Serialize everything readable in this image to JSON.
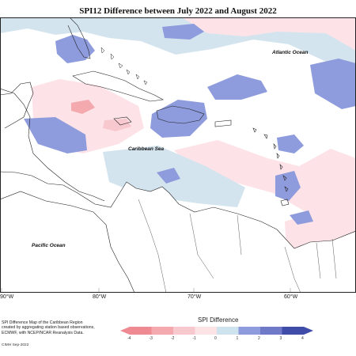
{
  "title": "SPI12 Difference between July 2022 and August 2022",
  "labels": {
    "atlantic": "Atlantic Ocean",
    "caribbean": "Caribbean Sea",
    "pacific": "Pacific Ocean"
  },
  "longitudes": [
    "90°W",
    "80°W",
    "70°W",
    "60°W"
  ],
  "notes": [
    "SPI Difference Map of the Caribbean Region",
    "created by aggregating station based observations,",
    "ECMWF, with NCEP/NCAR Reanalysis Data."
  ],
  "credit": "CIMH Sep-2022",
  "legend": {
    "title": "SPI Difference",
    "ticks": [
      "-4",
      "-3",
      "-2",
      "-1",
      "0",
      "1",
      "2",
      "3",
      "4"
    ],
    "colors": [
      "#f08a92",
      "#f3a9ae",
      "#f7c8cd",
      "#fbe3e6",
      "#ffffff",
      "#cfe3ee",
      "#8e9bdc",
      "#6f79c7",
      "#3f4ca8"
    ]
  }
}
